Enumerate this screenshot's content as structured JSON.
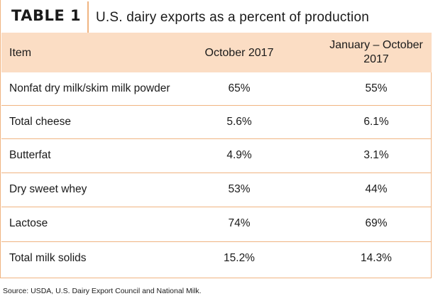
{
  "table": {
    "label": "TABLE 1",
    "title": "U.S. dairy exports as a percent of production",
    "columns": [
      "Item",
      "October 2017",
      "January – October 2017"
    ],
    "rows": [
      [
        "Nonfat dry milk/skim milk powder",
        "65%",
        "55%"
      ],
      [
        "Total cheese",
        "5.6%",
        "6.1%"
      ],
      [
        "Butterfat",
        "4.9%",
        "3.1%"
      ],
      [
        "Dry sweet whey",
        "53%",
        "44%"
      ],
      [
        "Lactose",
        "74%",
        "69%"
      ],
      [
        "Total milk solids",
        "15.2%",
        "14.3%"
      ]
    ]
  },
  "colors": {
    "header_fill": "#fbddc4",
    "border": "#f0b481"
  },
  "source": "Source: USDA, U.S. Dairy Export Council and National Milk."
}
